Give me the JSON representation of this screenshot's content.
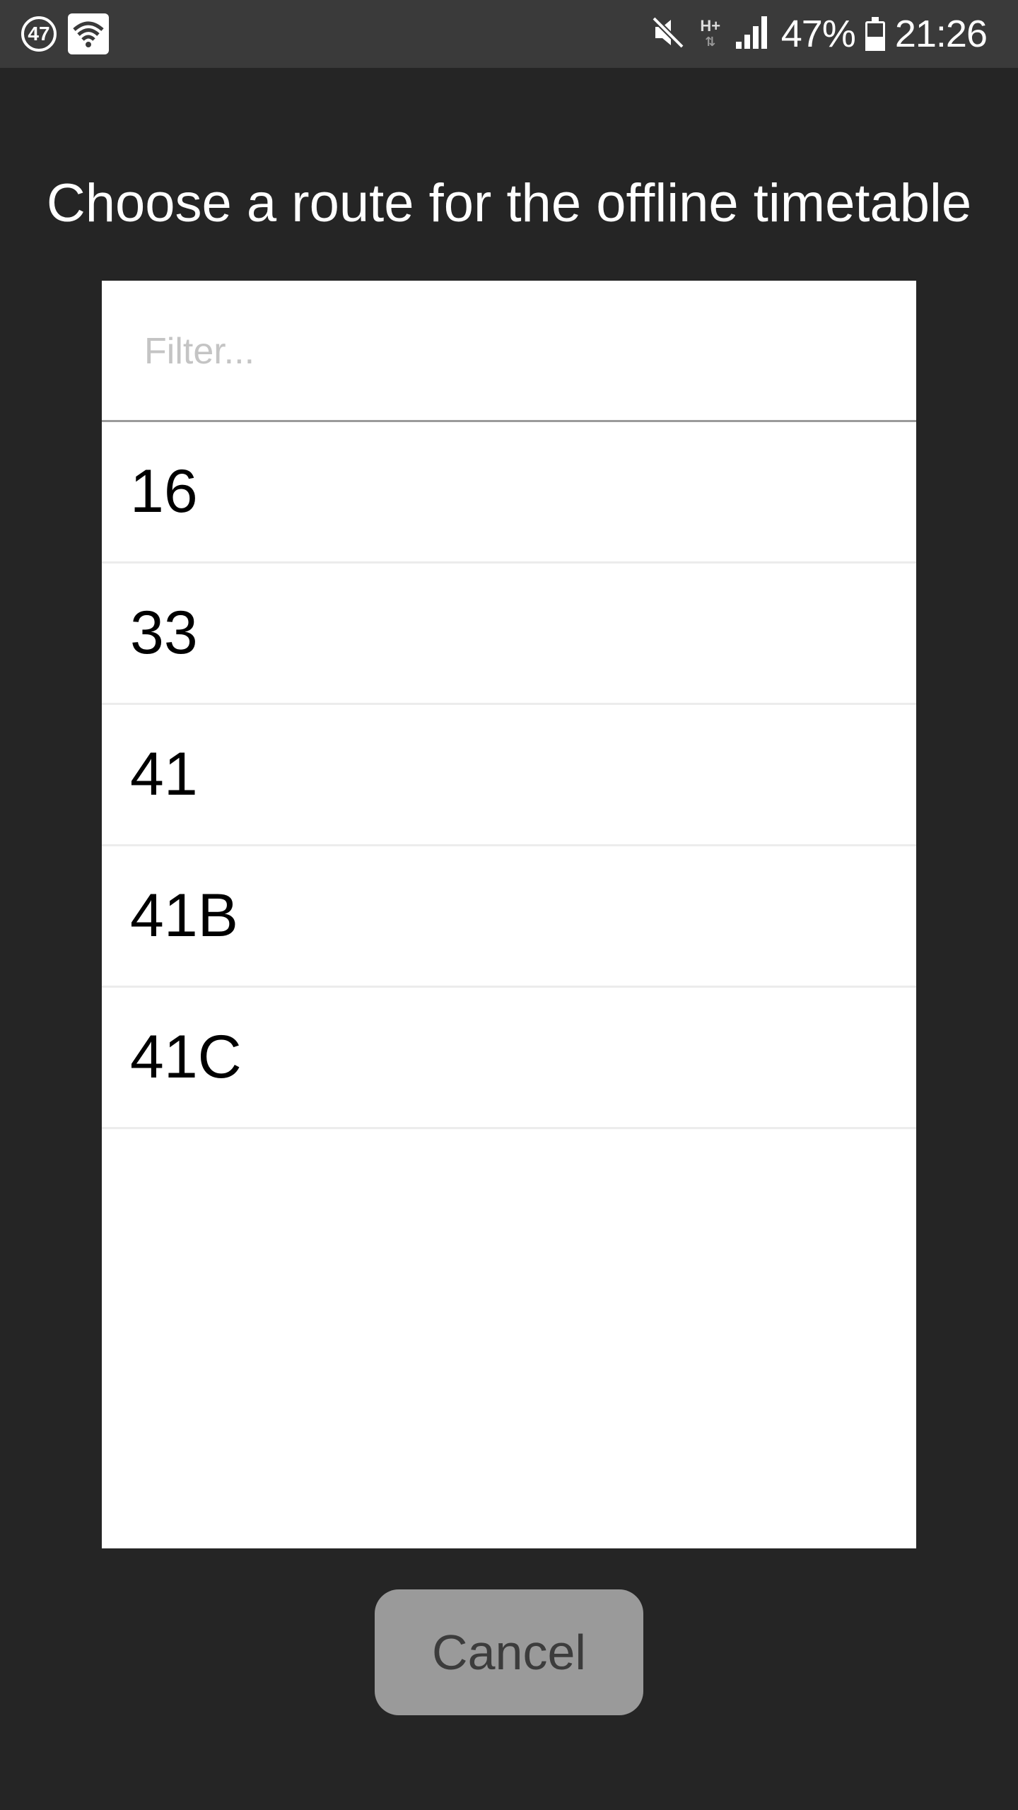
{
  "status_bar": {
    "notification_count": "47",
    "wifi_icon": "wifi-icon",
    "mute_icon": "volume-muted-icon",
    "network_type": "H+",
    "signal_icon": "signal-strength-icon",
    "battery_percent": "47%",
    "battery_level": 0.47,
    "time": "21:26"
  },
  "dialog": {
    "title": "Choose a route for the offline timetable",
    "filter": {
      "value": "",
      "placeholder": "Filter..."
    },
    "routes": [
      {
        "label": "16"
      },
      {
        "label": "33"
      },
      {
        "label": "41"
      },
      {
        "label": "41B"
      },
      {
        "label": "41C"
      }
    ],
    "cancel_label": "Cancel"
  },
  "colors": {
    "background": "#252525",
    "status_bar": "#3a3a3a",
    "panel": "#ffffff",
    "button": "#9a9a9a",
    "button_text": "#3c3c3c"
  }
}
